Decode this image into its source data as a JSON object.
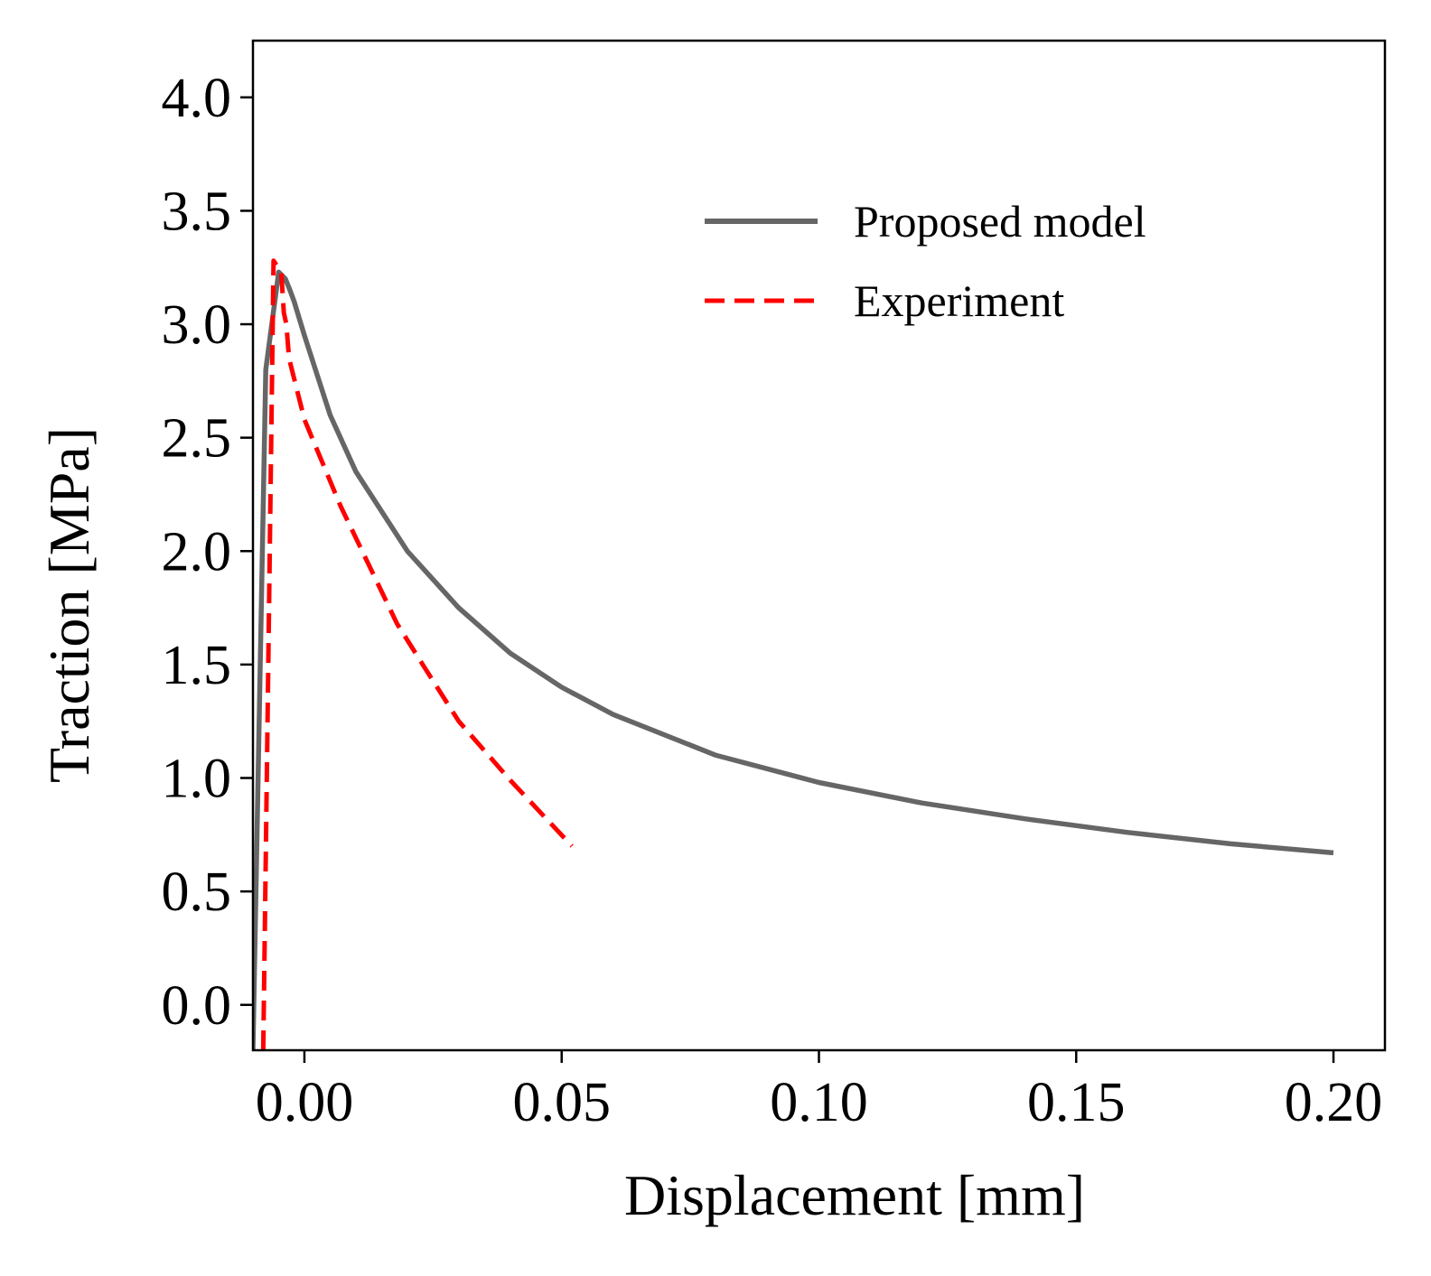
{
  "chart_data": {
    "type": "line",
    "xlabel": "Displacement [mm]",
    "ylabel": "Traction [MPa]",
    "xlim": [
      -0.01,
      0.21
    ],
    "ylim": [
      -0.2,
      4.25
    ],
    "xticks": [
      0.0,
      0.05,
      0.1,
      0.15,
      0.2
    ],
    "xtick_labels": [
      "0.00",
      "0.05",
      "0.10",
      "0.15",
      "0.20"
    ],
    "yticks": [
      0.0,
      0.5,
      1.0,
      1.5,
      2.0,
      2.5,
      3.0,
      3.5,
      4.0
    ],
    "ytick_labels": [
      "0.0",
      "0.5",
      "1.0",
      "1.5",
      "2.0",
      "2.5",
      "3.0",
      "3.5",
      "4.0"
    ],
    "grid": false,
    "legend_position": "upper-right",
    "series": [
      {
        "name": "Proposed model",
        "color": "#666666",
        "style": "solid",
        "x": [
          -0.01,
          -0.0075,
          -0.005,
          -0.0037,
          -0.0028,
          -0.002,
          0.0,
          0.005,
          0.01,
          0.02,
          0.03,
          0.04,
          0.05,
          0.06,
          0.08,
          0.1,
          0.12,
          0.14,
          0.16,
          0.18,
          0.2
        ],
        "y": [
          -0.2,
          2.8,
          3.23,
          3.2,
          3.15,
          3.1,
          2.95,
          2.6,
          2.35,
          2.0,
          1.75,
          1.55,
          1.4,
          1.28,
          1.1,
          0.98,
          0.89,
          0.82,
          0.76,
          0.71,
          0.67
        ]
      },
      {
        "name": "Experiment",
        "color": "#ff0000",
        "style": "dashed",
        "x": [
          -0.008,
          -0.006,
          -0.0045,
          -0.004,
          -0.0035,
          -0.003,
          0.0,
          0.007,
          0.018,
          0.023,
          0.03,
          0.04,
          0.052
        ],
        "y": [
          -0.2,
          3.28,
          3.23,
          3.05,
          3.0,
          2.85,
          2.58,
          2.2,
          1.68,
          1.5,
          1.25,
          0.99,
          0.7
        ]
      }
    ]
  }
}
